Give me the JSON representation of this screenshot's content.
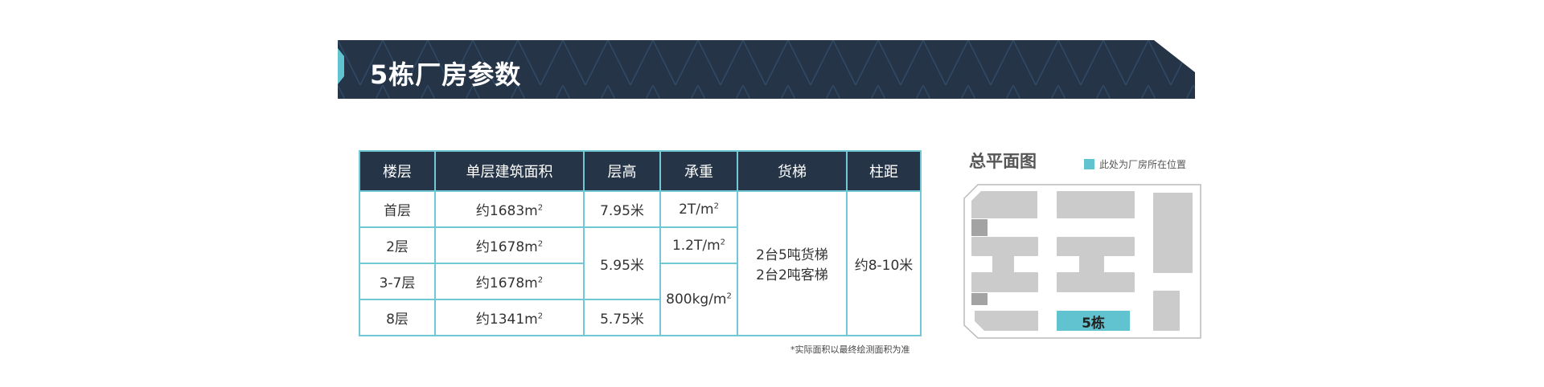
{
  "banner": {
    "title": "5栋厂房参数"
  },
  "table": {
    "headers": [
      "楼层",
      "单层建筑面积",
      "层高",
      "承重",
      "货梯",
      "柱距"
    ],
    "rows": [
      {
        "floor": "首层",
        "area": "约1683m",
        "height": "7.95米",
        "load": "2T/m"
      },
      {
        "floor": "2层",
        "area": "约1678m",
        "height": "5.95米",
        "load": "1.2T/m"
      },
      {
        "floor": "3-7层",
        "area": "约1678m",
        "load": "800kg/m"
      },
      {
        "floor": "8层",
        "area": "约1341m",
        "height": "5.75米"
      }
    ],
    "unit_sup": "2",
    "elevator_line1": "2台5吨货梯",
    "elevator_line2": "2台2吨客梯",
    "column_spacing": "约8-10米"
  },
  "note": "*实际面积以最终绘测面积为准",
  "map": {
    "title": "总平面图",
    "legend": "此处为厂房所在位置",
    "highlight_label": "5栋",
    "highlight_color": "#62c3d0"
  }
}
